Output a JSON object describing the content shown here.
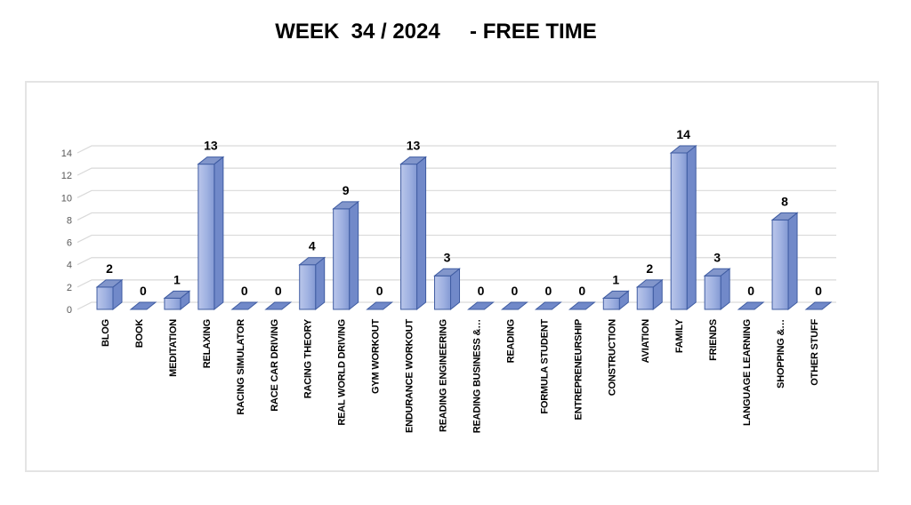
{
  "chart_data": {
    "type": "bar",
    "style": "3d-column",
    "title": "WEEK  34 / 2024     - FREE TIME",
    "categories": [
      "BLOG",
      "BOOK",
      "MEDITATION",
      "RELAXING",
      "RACING SIMULATOR",
      "RACE CAR DRIVING",
      "RACING THEORY",
      "REAL WORLD DRIVING",
      "GYM WORKOUT",
      "ENDURANCE WORKOUT",
      "READING ENGINEERING",
      "READING BUSINESS &…",
      "READING",
      "FORMULA STUDENT",
      "ENTREPRENEURSHIP",
      "CONSTRUCTION",
      "AVIATION",
      "FAMILY",
      "FRIENDS",
      "LANGUAGE LEARNING",
      "SHOPPING &…",
      "OTHER STUFF"
    ],
    "values": [
      2,
      0,
      1,
      13,
      0,
      0,
      4,
      9,
      0,
      13,
      3,
      0,
      0,
      0,
      0,
      1,
      2,
      14,
      3,
      0,
      8,
      0
    ],
    "xlabel": "",
    "ylabel": "",
    "ylim": [
      0,
      14
    ],
    "yticks": [
      0,
      2,
      4,
      6,
      8,
      10,
      12,
      14
    ],
    "grid": true,
    "legend": false,
    "data_labels": true,
    "colors": {
      "bar_face_light": "#bac6ea",
      "bar_face_mid": "#9fb1e1",
      "bar_face_dark": "#8399d3",
      "bar_top": "#8296cb",
      "bar_side": "#7189c9",
      "bar_border": "#3f5ca2",
      "gridline": "#d9d9d9",
      "tick_label": "#595959",
      "data_label": "#000000",
      "chart_border": "#e4e4e4",
      "background": "#ffffff"
    }
  }
}
